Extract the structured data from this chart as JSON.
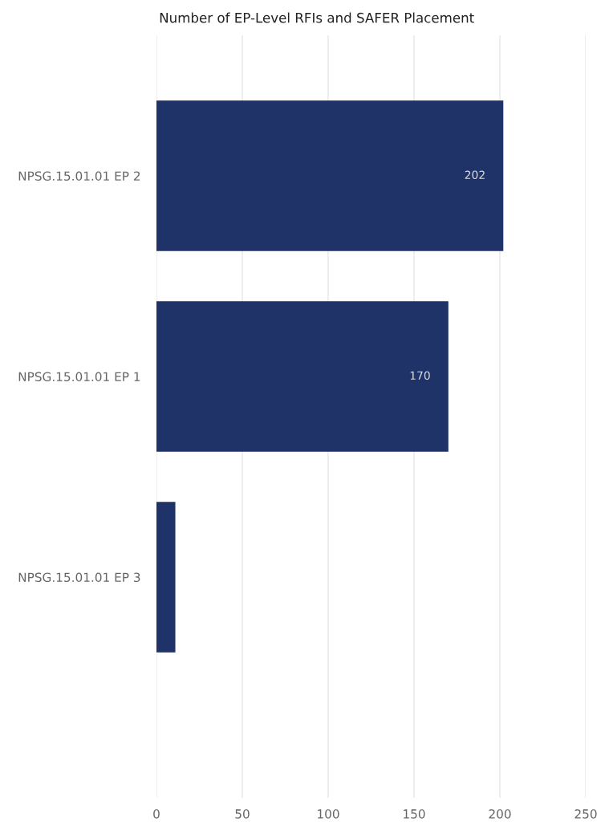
{
  "chart_data": {
    "type": "bar",
    "orientation": "horizontal",
    "title": "Number of EP-Level RFIs and SAFER Placement",
    "categories": [
      "NPSG.15.01.01 EP 2",
      "NPSG.15.01.01 EP 1",
      "NPSG.15.01.01 EP 3"
    ],
    "values": [
      202,
      170,
      11
    ],
    "value_labels": [
      "202",
      "170",
      null
    ],
    "color": "#1f3368",
    "xlim": [
      0,
      250
    ],
    "xticks": [
      0,
      50,
      100,
      150,
      200,
      250
    ],
    "grid": "x"
  }
}
